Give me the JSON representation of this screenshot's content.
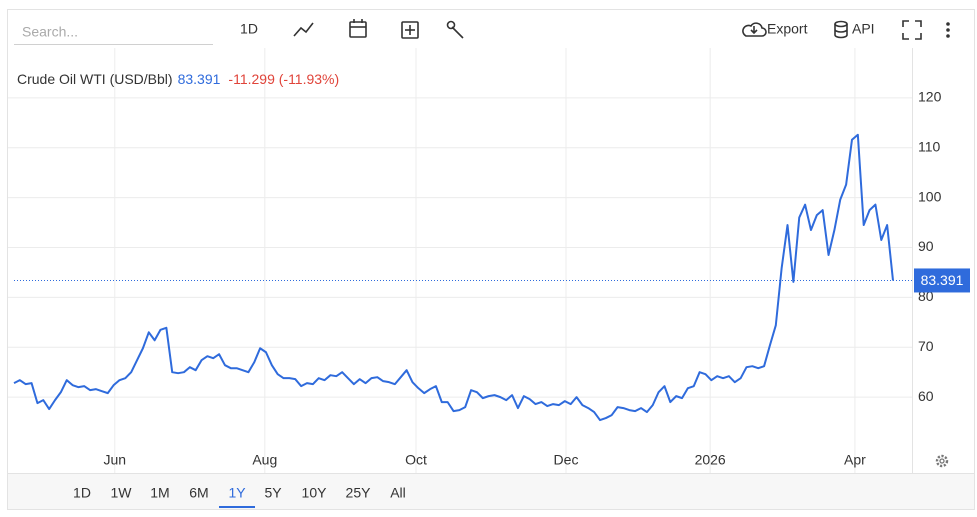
{
  "toolbar": {
    "search_placeholder": "Search...",
    "interval": "1D",
    "export": "Export",
    "api": "API"
  },
  "range_buttons": [
    "1D",
    "1W",
    "1M",
    "6M",
    "1Y",
    "5Y",
    "10Y",
    "25Y",
    "All"
  ],
  "selected_range": "1Y",
  "chart_data": {
    "type": "line",
    "title": "Crude Oil WTI (USD/Bbl)",
    "change_text": "-11.299 (-11.93%)",
    "color": "#2f6bdc",
    "change_color": "#e0443a",
    "values": [
      62.8,
      63.4,
      62.6,
      62.8,
      58.8,
      59.4,
      57.6,
      59.4,
      61,
      63.4,
      62.4,
      62,
      62.2,
      61.4,
      61.6,
      61.2,
      60.8,
      62.4,
      63.4,
      63.8,
      65,
      67.4,
      69.8,
      73,
      71.4,
      73.5,
      73.9,
      65,
      64.8,
      65,
      66,
      65.4,
      67.4,
      68.2,
      67.8,
      68.6,
      66.4,
      65.8,
      65.8,
      65.4,
      65,
      67,
      69.8,
      69,
      66.4,
      64.6,
      63.8,
      63.8,
      63.6,
      62.2,
      62.8,
      62.6,
      63.8,
      63.4,
      64.4,
      64.2,
      65,
      63.8,
      62.6,
      63.6,
      62.8,
      63.8,
      64,
      63.2,
      63,
      62.6,
      64,
      65.4,
      63,
      61.8,
      60.8,
      61.6,
      62.2,
      59,
      59,
      57.2,
      57.4,
      58,
      61.4,
      61,
      59.8,
      60.2,
      60.4,
      60,
      59.4,
      60.4,
      57.8,
      60.2,
      59.6,
      58.6,
      59,
      58.2,
      58.6,
      58.4,
      59.2,
      58.6,
      60,
      58.4,
      57.8,
      57,
      55.4,
      55.8,
      56.4,
      58,
      57.8,
      57.4,
      57.2,
      57.8,
      57,
      58.4,
      61,
      62.2,
      59,
      60.2,
      59.8,
      61.8,
      62.2,
      65,
      64.6,
      63.4,
      64.2,
      63.8,
      64.2,
      63,
      63.8,
      66,
      66.2,
      65.8,
      66.2,
      70.4,
      74.4,
      85.9,
      94.5,
      83.1,
      96,
      98.6,
      93.5,
      96.5,
      97.5,
      88.5,
      93.5,
      99.6,
      102.6,
      111.6,
      112.6,
      94.5,
      97.5,
      98.6,
      91.5,
      94.5,
      83.391
    ],
    "xlim": [
      0,
      150
    ],
    "xticks": [
      {
        "value": 17.2,
        "label": "Jun"
      },
      {
        "value": 42.8,
        "label": "Aug"
      },
      {
        "value": 68.6,
        "label": "Oct"
      },
      {
        "value": 94.2,
        "label": "Dec"
      },
      {
        "value": 118.8,
        "label": "2026"
      },
      {
        "value": 143.5,
        "label": "Apr"
      }
    ],
    "ylim": [
      50,
      130
    ],
    "yticks": [
      60,
      70,
      80,
      90,
      100,
      110,
      120
    ],
    "grid": true
  }
}
